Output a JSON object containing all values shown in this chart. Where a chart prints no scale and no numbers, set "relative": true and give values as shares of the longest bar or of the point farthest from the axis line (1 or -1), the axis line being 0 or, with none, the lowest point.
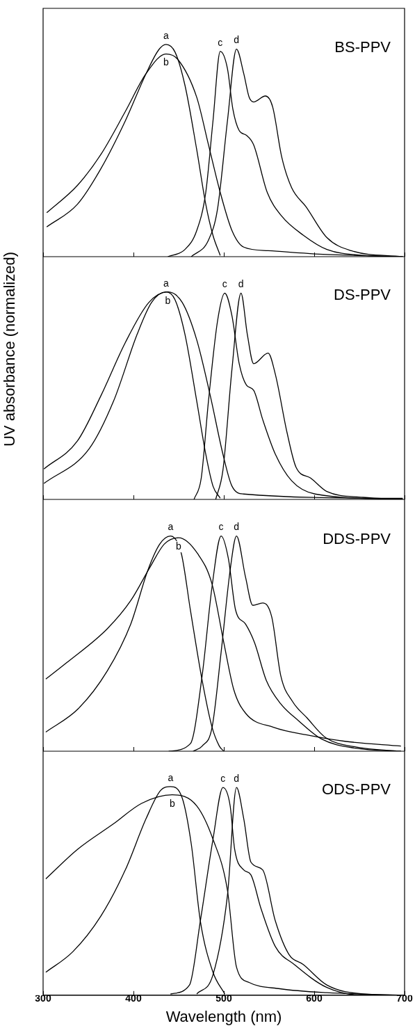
{
  "chart_data": [
    {
      "type": "line",
      "title": "BS-PPV",
      "relative": true,
      "xlim": [
        300,
        700
      ],
      "xticks": [
        300,
        400,
        500,
        600,
        700
      ],
      "tick_labels": false,
      "series": [
        {
          "name": "a",
          "color": "#000000",
          "x": [
            304,
            338,
            364,
            391,
            414,
            428,
            436,
            446,
            457,
            470,
            480,
            488,
            496
          ],
          "values": [
            0.14,
            0.247,
            0.415,
            0.64,
            0.863,
            0.975,
            1,
            0.964,
            0.807,
            0.504,
            0.247,
            0.1,
            0.006
          ]
        },
        {
          "name": "b",
          "color": "#000000",
          "x": [
            304,
            338,
            364,
            391,
            414,
            436,
            449,
            470,
            483,
            496,
            509,
            522,
            549,
            601,
            698
          ],
          "values": [
            0.207,
            0.336,
            0.482,
            0.684,
            0.863,
            0.955,
            0.93,
            0.751,
            0.527,
            0.303,
            0.123,
            0.045,
            0.028,
            0.013,
            0
          ]
        },
        {
          "name": "c",
          "color": "#000000",
          "x": [
            438,
            457,
            470,
            480,
            488,
            496,
            504,
            510,
            517,
            525,
            533,
            548,
            564,
            588,
            614,
            654,
            698
          ],
          "values": [
            0,
            0.034,
            0.123,
            0.303,
            0.64,
            0.967,
            0.886,
            0.695,
            0.594,
            0.572,
            0.527,
            0.303,
            0.191,
            0.101,
            0.034,
            0.006,
            0
          ]
        },
        {
          "name": "d",
          "color": "#000000",
          "x": [
            464,
            483,
            493,
            504,
            514,
            522,
            528,
            533,
            546,
            554,
            564,
            575,
            591,
            614,
            641,
            698
          ],
          "values": [
            0,
            0.078,
            0.224,
            0.64,
            0.978,
            0.863,
            0.751,
            0.729,
            0.757,
            0.706,
            0.471,
            0.325,
            0.235,
            0.09,
            0.028,
            0
          ]
        }
      ]
    },
    {
      "type": "line",
      "title": "DS-PPV",
      "relative": true,
      "ylabel": "UV absorbance (normalized)",
      "xlim": [
        300,
        700
      ],
      "xticks": [
        300,
        400,
        500,
        600,
        700
      ],
      "tick_labels": false,
      "series": [
        {
          "name": "a",
          "color": "#000000",
          "x": [
            301,
            351,
            378,
            404,
            420,
            436,
            446,
            457,
            470,
            480,
            488,
            496
          ],
          "values": [
            0.077,
            0.244,
            0.474,
            0.795,
            0.949,
            1,
            0.962,
            0.795,
            0.474,
            0.218,
            0.064,
            0.006
          ]
        },
        {
          "name": "b",
          "color": "#000000",
          "x": [
            301,
            338,
            364,
            391,
            417,
            438,
            454,
            470,
            485,
            499,
            509,
            522,
            698
          ],
          "values": [
            0.147,
            0.282,
            0.5,
            0.756,
            0.949,
            1,
            0.949,
            0.769,
            0.5,
            0.218,
            0.064,
            0.026,
            0.005
          ]
        },
        {
          "name": "c",
          "color": "#000000",
          "x": [
            467,
            475,
            483,
            493,
            501,
            509,
            517,
            525,
            533,
            543,
            557,
            575,
            601,
            698
          ],
          "values": [
            0,
            0.103,
            0.474,
            0.859,
            0.994,
            0.885,
            0.654,
            0.551,
            0.526,
            0.385,
            0.218,
            0.09,
            0.026,
            0
          ]
        },
        {
          "name": "d",
          "color": "#000000",
          "x": [
            491,
            499,
            509,
            519,
            526,
            533,
            549,
            557,
            570,
            580,
            596,
            614,
            654,
            698
          ],
          "values": [
            0,
            0.141,
            0.628,
            0.994,
            0.795,
            0.654,
            0.705,
            0.603,
            0.321,
            0.154,
            0.103,
            0.038,
            0.01,
            0
          ]
        }
      ]
    },
    {
      "type": "line",
      "title": "DDS-PPV",
      "relative": true,
      "xlim": [
        300,
        700
      ],
      "xticks": [
        300,
        400,
        500,
        600,
        700
      ],
      "tick_labels": false,
      "series": [
        {
          "name": "a",
          "color": "#000000",
          "x": [
            303,
            339,
            371,
            397,
            416,
            429,
            441,
            453,
            463,
            476,
            487,
            495,
            500
          ],
          "values": [
            0.089,
            0.198,
            0.373,
            0.591,
            0.842,
            0.962,
            1,
            0.918,
            0.656,
            0.329,
            0.111,
            0.024,
            0
          ]
        },
        {
          "name": "b",
          "color": "#000000",
          "x": [
            303,
            326,
            371,
            397,
            418,
            434,
            450,
            471,
            487,
            500,
            511,
            524,
            555,
            595,
            634,
            696
          ],
          "values": [
            0.335,
            0.411,
            0.569,
            0.7,
            0.853,
            0.962,
            0.992,
            0.918,
            0.776,
            0.504,
            0.286,
            0.177,
            0.111,
            0.073,
            0.046,
            0.024
          ]
        },
        {
          "name": "c",
          "color": "#000000",
          "x": [
            439,
            463,
            476,
            487,
            497,
            505,
            513,
            524,
            534,
            547,
            563,
            582,
            608,
            647,
            696
          ],
          "values": [
            0,
            0.035,
            0.351,
            0.766,
            1,
            0.896,
            0.656,
            0.591,
            0.504,
            0.329,
            0.22,
            0.144,
            0.057,
            0.013,
            0
          ]
        },
        {
          "name": "d",
          "color": "#000000",
          "x": [
            466,
            476,
            487,
            497,
            507,
            514,
            524,
            532,
            543,
            553,
            563,
            576,
            592,
            613,
            647,
            696
          ],
          "values": [
            0,
            0.024,
            0.111,
            0.46,
            0.842,
            1,
            0.809,
            0.678,
            0.689,
            0.624,
            0.351,
            0.231,
            0.155,
            0.062,
            0.019,
            0
          ]
        }
      ]
    },
    {
      "type": "line",
      "title": "ODS-PPV",
      "relative": true,
      "xlabel": "Wavelength (nm)",
      "xlim": [
        300,
        700
      ],
      "xticks": [
        300,
        400,
        500,
        600,
        700
      ],
      "tick_labels": "x",
      "series": [
        {
          "name": "a",
          "color": "#000000",
          "x": [
            303,
            333,
            364,
            391,
            414,
            430,
            441,
            454,
            464,
            474,
            488,
            501
          ],
          "values": [
            0.11,
            0.209,
            0.38,
            0.601,
            0.847,
            0.982,
            1,
            0.945,
            0.724,
            0.356,
            0.11,
            0.006
          ]
        },
        {
          "name": "b",
          "color": "#000000",
          "x": [
            303,
            338,
            378,
            409,
            443,
            470,
            488,
            504,
            514,
            528,
            562,
            614,
            699
          ],
          "values": [
            0.558,
            0.699,
            0.822,
            0.92,
            0.961,
            0.908,
            0.748,
            0.503,
            0.135,
            0.061,
            0.031,
            0.012,
            0
          ]
        },
        {
          "name": "c",
          "color": "#000000",
          "x": [
            441,
            462,
            474,
            488,
            499,
            507,
            512,
            522,
            530,
            541,
            557,
            578,
            614,
            654,
            699
          ],
          "values": [
            0.006,
            0.049,
            0.356,
            0.748,
            0.996,
            0.908,
            0.699,
            0.601,
            0.577,
            0.417,
            0.233,
            0.147,
            0.037,
            0,
            0
          ]
        },
        {
          "name": "d",
          "color": "#000000",
          "x": [
            470,
            488,
            504,
            514,
            522,
            530,
            543,
            557,
            572,
            588,
            614,
            654,
            699
          ],
          "values": [
            0.006,
            0.098,
            0.479,
            0.996,
            0.847,
            0.638,
            0.601,
            0.356,
            0.196,
            0.147,
            0.049,
            0.006,
            0
          ]
        }
      ]
    }
  ]
}
